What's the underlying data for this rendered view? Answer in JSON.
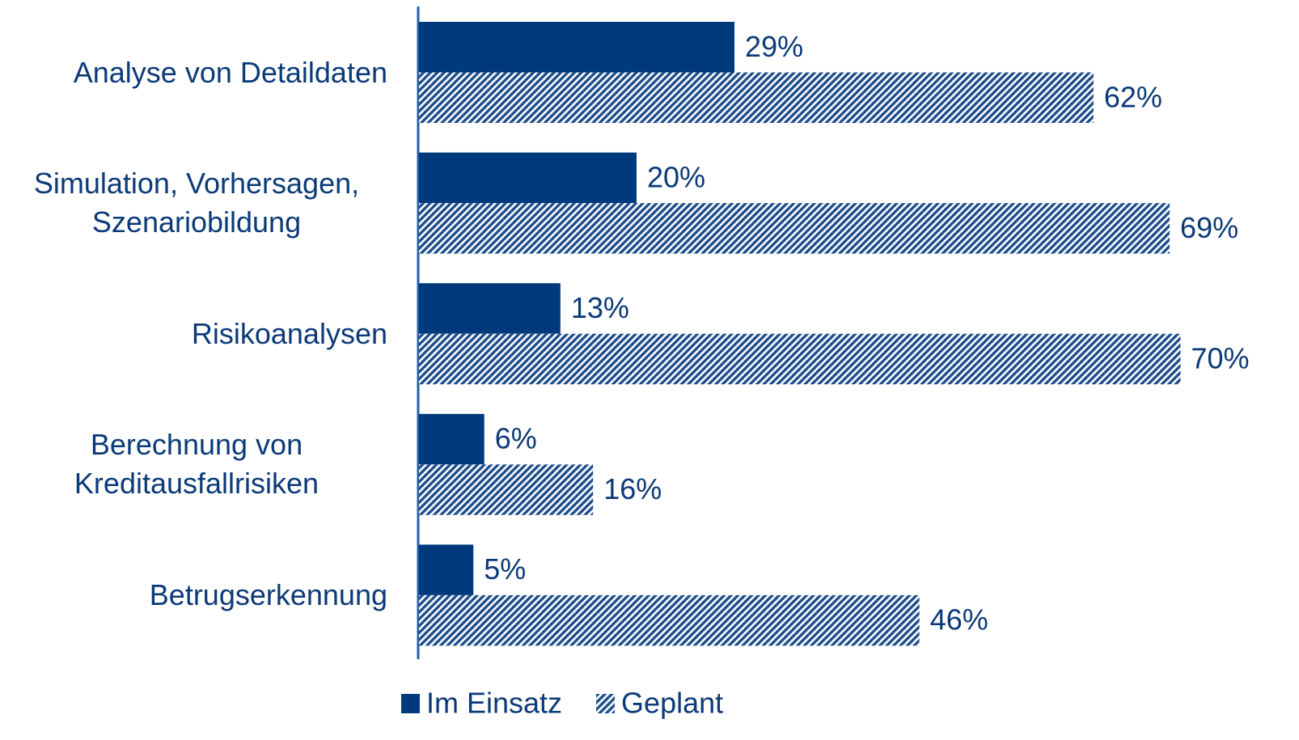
{
  "chart_data": {
    "type": "bar",
    "orientation": "horizontal",
    "categories": [
      "Analyse von Detaildaten",
      "Simulation, Vorhersagen, Szenariobildung",
      "Risikoanalysen",
      "Berechnung von Kreditausfallrisiken",
      "Betrugserkennung"
    ],
    "series": [
      {
        "name": "Im Einsatz",
        "color": "#003a7d",
        "pattern": "solid",
        "values": [
          29,
          20,
          13,
          6,
          5
        ],
        "value_labels": [
          "29%",
          "20%",
          "13%",
          "6%",
          "5%"
        ]
      },
      {
        "name": "Geplant",
        "color": "#1f4e8c",
        "pattern": "hatch",
        "values": [
          62,
          69,
          70,
          16,
          46
        ],
        "value_labels": [
          "62%",
          "69%",
          "70%",
          "16%",
          "46%"
        ]
      }
    ],
    "legend": "bottom"
  }
}
